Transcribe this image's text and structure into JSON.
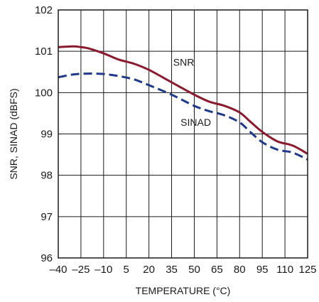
{
  "chart_data": {
    "type": "line",
    "xlabel": "TEMPERATURE (°C)",
    "ylabel": "SNR, SINAD (dBFS)",
    "xlim": [
      -40,
      125
    ],
    "ylim": [
      96,
      102
    ],
    "grid": true,
    "x_ticks": [
      -40,
      -25,
      -10,
      5,
      20,
      35,
      50,
      65,
      80,
      95,
      110,
      125
    ],
    "x_tick_labels": [
      "–40",
      "–25",
      "–10",
      "5",
      "20",
      "35",
      "50",
      "65",
      "80",
      "95",
      "110",
      "125"
    ],
    "y_ticks": [
      96,
      97,
      98,
      99,
      100,
      101,
      102
    ],
    "y_tick_labels": [
      "96",
      "97",
      "98",
      "99",
      "100",
      "101",
      "102"
    ],
    "series": [
      {
        "name": "SNR",
        "color": "#8b1a2e",
        "style": "solid",
        "x": [
          -40,
          -30,
          -25,
          -20,
          -10,
          0,
          10,
          20,
          35,
          50,
          60,
          70,
          80,
          87,
          95,
          105,
          115,
          125
        ],
        "y": [
          101.1,
          101.12,
          101.1,
          101.07,
          100.95,
          100.8,
          100.7,
          100.55,
          100.25,
          99.95,
          99.78,
          99.68,
          99.52,
          99.3,
          99.05,
          98.82,
          98.72,
          98.52
        ]
      },
      {
        "name": "SINAD",
        "color": "#1f3a8a",
        "style": "dashed",
        "x": [
          -40,
          -30,
          -20,
          -10,
          0,
          10,
          20,
          35,
          50,
          60,
          70,
          80,
          87,
          95,
          105,
          115,
          125
        ],
        "y": [
          100.37,
          100.44,
          100.46,
          100.45,
          100.4,
          100.32,
          100.18,
          99.95,
          99.68,
          99.55,
          99.45,
          99.28,
          99.05,
          98.8,
          98.62,
          98.55,
          98.38
        ]
      }
    ],
    "annotations": [
      {
        "series": "SNR",
        "text": "SNR",
        "x": 43,
        "y": 100.65
      },
      {
        "series": "SINAD",
        "text": "SINAD",
        "x": 51,
        "y": 99.2
      }
    ]
  }
}
